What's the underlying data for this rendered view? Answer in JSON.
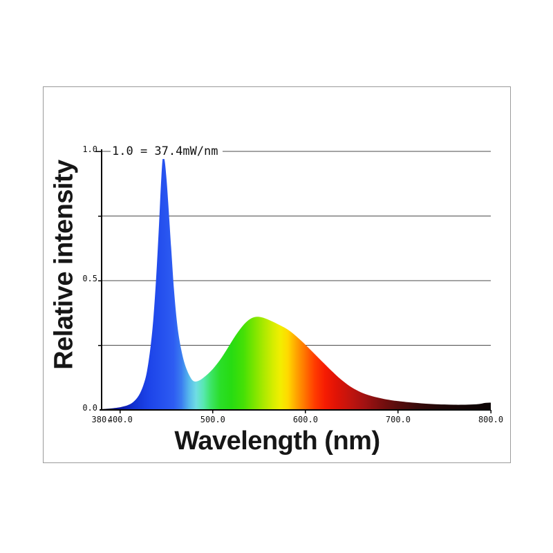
{
  "page": {
    "background": "#ffffff",
    "panel_border_color": "#9a9a9a"
  },
  "chart_data": {
    "type": "area",
    "annotation": "1.0 = 37.4mW/nm",
    "xlabel": "Wavelength (nm)",
    "ylabel": "Relative intensity",
    "xlim": [
      380,
      800
    ],
    "ylim": [
      0,
      1
    ],
    "grid": true,
    "legend": "none",
    "axis_color": "#000000",
    "grid_color": "#4a4a4a",
    "x_ticks": [
      {
        "v": 380,
        "label": "380."
      },
      {
        "v": 400,
        "label": "400.0"
      },
      {
        "v": 500,
        "label": "500.0"
      },
      {
        "v": 600,
        "label": "600.0"
      },
      {
        "v": 700,
        "label": "700.0"
      },
      {
        "v": 800,
        "label": "800.0"
      }
    ],
    "x_tick_marks": [
      400,
      500,
      600,
      700,
      800
    ],
    "y_ticks": [
      {
        "v": 0.0,
        "label": "0.0"
      },
      {
        "v": 0.5,
        "label": "0.5"
      },
      {
        "v": 1.0,
        "label": "1.0"
      }
    ],
    "y_gridlines": [
      0.25,
      0.5,
      0.75,
      1.0
    ],
    "series": [
      {
        "name": "spd",
        "points": [
          [
            380,
            0.003
          ],
          [
            388,
            0.005
          ],
          [
            396,
            0.008
          ],
          [
            402,
            0.012
          ],
          [
            408,
            0.018
          ],
          [
            414,
            0.03
          ],
          [
            420,
            0.055
          ],
          [
            425,
            0.095
          ],
          [
            429,
            0.15
          ],
          [
            433,
            0.25
          ],
          [
            436,
            0.36
          ],
          [
            439,
            0.52
          ],
          [
            442,
            0.72
          ],
          [
            444,
            0.87
          ],
          [
            446,
            0.975
          ],
          [
            448,
            0.965
          ],
          [
            450,
            0.895
          ],
          [
            452,
            0.795
          ],
          [
            455,
            0.63
          ],
          [
            458,
            0.47
          ],
          [
            461,
            0.35
          ],
          [
            464,
            0.27
          ],
          [
            468,
            0.2
          ],
          [
            472,
            0.155
          ],
          [
            476,
            0.125
          ],
          [
            479,
            0.112
          ],
          [
            482,
            0.11
          ],
          [
            486,
            0.115
          ],
          [
            490,
            0.125
          ],
          [
            495,
            0.14
          ],
          [
            500,
            0.158
          ],
          [
            505,
            0.18
          ],
          [
            510,
            0.205
          ],
          [
            515,
            0.233
          ],
          [
            520,
            0.262
          ],
          [
            525,
            0.29
          ],
          [
            530,
            0.315
          ],
          [
            535,
            0.336
          ],
          [
            540,
            0.351
          ],
          [
            545,
            0.359
          ],
          [
            550,
            0.36
          ],
          [
            555,
            0.356
          ],
          [
            560,
            0.349
          ],
          [
            565,
            0.341
          ],
          [
            570,
            0.332
          ],
          [
            575,
            0.323
          ],
          [
            580,
            0.313
          ],
          [
            585,
            0.3
          ],
          [
            590,
            0.285
          ],
          [
            595,
            0.269
          ],
          [
            600,
            0.252
          ],
          [
            605,
            0.234
          ],
          [
            610,
            0.216
          ],
          [
            615,
            0.198
          ],
          [
            620,
            0.18
          ],
          [
            625,
            0.162
          ],
          [
            630,
            0.145
          ],
          [
            635,
            0.128
          ],
          [
            640,
            0.113
          ],
          [
            645,
            0.099
          ],
          [
            650,
            0.087
          ],
          [
            655,
            0.077
          ],
          [
            660,
            0.068
          ],
          [
            665,
            0.061
          ],
          [
            670,
            0.055
          ],
          [
            675,
            0.05
          ],
          [
            680,
            0.046
          ],
          [
            685,
            0.042
          ],
          [
            690,
            0.039
          ],
          [
            695,
            0.036
          ],
          [
            700,
            0.034
          ],
          [
            710,
            0.03
          ],
          [
            720,
            0.027
          ],
          [
            730,
            0.024
          ],
          [
            740,
            0.022
          ],
          [
            750,
            0.021
          ],
          [
            760,
            0.02
          ],
          [
            770,
            0.02
          ],
          [
            780,
            0.021
          ],
          [
            788,
            0.023
          ],
          [
            794,
            0.027
          ],
          [
            800,
            0.028
          ]
        ]
      }
    ],
    "spectrum_stops": [
      {
        "nm": 380,
        "color": "#05051a"
      },
      {
        "nm": 400,
        "color": "#0a16a6"
      },
      {
        "nm": 415,
        "color": "#1231d2"
      },
      {
        "nm": 430,
        "color": "#1c43e8"
      },
      {
        "nm": 445,
        "color": "#2550ee"
      },
      {
        "nm": 458,
        "color": "#2e5df2"
      },
      {
        "nm": 466,
        "color": "#3a7cf0"
      },
      {
        "nm": 474,
        "color": "#55b6ec"
      },
      {
        "nm": 482,
        "color": "#6fdde4"
      },
      {
        "nm": 490,
        "color": "#58e8b0"
      },
      {
        "nm": 498,
        "color": "#3ce465"
      },
      {
        "nm": 508,
        "color": "#2ade28"
      },
      {
        "nm": 520,
        "color": "#27dc12"
      },
      {
        "nm": 533,
        "color": "#44e006"
      },
      {
        "nm": 545,
        "color": "#7ce600"
      },
      {
        "nm": 555,
        "color": "#abe900"
      },
      {
        "nm": 565,
        "color": "#d5ed00"
      },
      {
        "nm": 573,
        "color": "#f2ee00"
      },
      {
        "nm": 581,
        "color": "#ffd900"
      },
      {
        "nm": 590,
        "color": "#ffa500"
      },
      {
        "nm": 600,
        "color": "#ff7000"
      },
      {
        "nm": 610,
        "color": "#ff3c00"
      },
      {
        "nm": 621,
        "color": "#f61c02"
      },
      {
        "nm": 633,
        "color": "#e01306"
      },
      {
        "nm": 648,
        "color": "#c2140e"
      },
      {
        "nm": 663,
        "color": "#a31212"
      },
      {
        "nm": 680,
        "color": "#7d0f0f"
      },
      {
        "nm": 700,
        "color": "#560d0d"
      },
      {
        "nm": 722,
        "color": "#360a0a"
      },
      {
        "nm": 748,
        "color": "#1f0707"
      },
      {
        "nm": 775,
        "color": "#120505"
      },
      {
        "nm": 800,
        "color": "#0b0404"
      }
    ]
  }
}
